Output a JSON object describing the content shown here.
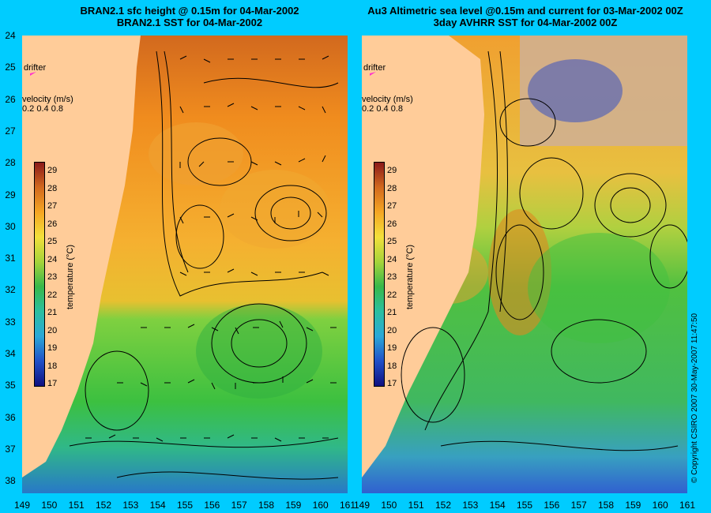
{
  "left_title": {
    "line1": "BRAN2.1 sfc height @ 0.15m for 04-Mar-2002",
    "line2": "BRAN2.1 SST for 04-Mar-2002"
  },
  "right_title": {
    "line1": "Au3 Altimetric sea level  @0.15m and current for 03-Mar-2002 00Z",
    "line2": "3day AVHRR SST for 04-Mar-2002 00Z"
  },
  "y_ticks": [
    "24",
    "25",
    "26",
    "27",
    "28",
    "29",
    "30",
    "31",
    "32",
    "33",
    "34",
    "35",
    "36",
    "37",
    "38"
  ],
  "x_ticks_left": [
    "149",
    "150",
    "151",
    "152",
    "153",
    "154",
    "155",
    "156",
    "157",
    "158",
    "159",
    "160",
    "161"
  ],
  "x_ticks_right": [
    "149",
    "150",
    "151",
    "152",
    "153",
    "154",
    "155",
    "156",
    "157",
    "158",
    "159",
    "160",
    "161"
  ],
  "drifter_label": "drifter",
  "velocity_label": "velocity (m/s)",
  "velocity_scale": "0.2 0.4 0.8",
  "colorbar": {
    "title": "temperature (°C)",
    "ticks": [
      "29",
      "28",
      "27",
      "26",
      "25",
      "24",
      "23",
      "22",
      "21",
      "20",
      "19",
      "18",
      "17"
    ]
  },
  "copyright": "© Copyright CSIRO 2007   30-May-2007 11:47:50",
  "colors": {
    "background": "#00ccff",
    "land": "#ffcc99",
    "drifter": "#ff33cc"
  }
}
